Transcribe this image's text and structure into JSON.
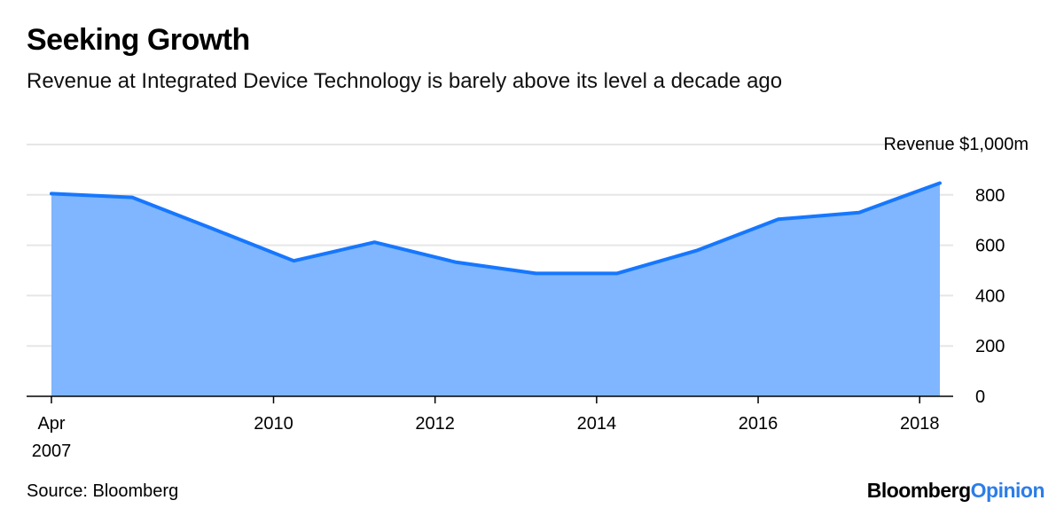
{
  "title": "Seeking Growth",
  "subtitle": "Revenue at Integrated Device Technology is barely above its level a decade ago",
  "source": "Source: Bloomberg",
  "brand": {
    "main": "Bloomberg",
    "accent": "Opinion"
  },
  "colors": {
    "line": "#1677ff",
    "area": "#7fb6ff",
    "grid": "#e6e6e6",
    "brand_accent": "#2b7de9"
  },
  "chart_data": {
    "type": "area",
    "ylabel": "Revenue $1,000m",
    "ylim": [
      0,
      1000
    ],
    "y_ticks": [
      0,
      200,
      400,
      600,
      800
    ],
    "x_ticks": [
      {
        "x": 2007.25,
        "label": "Apr",
        "label2": "2007"
      },
      {
        "x": 2010,
        "label": "2010"
      },
      {
        "x": 2012,
        "label": "2012"
      },
      {
        "x": 2014,
        "label": "2014"
      },
      {
        "x": 2016,
        "label": "2016"
      },
      {
        "x": 2018,
        "label": "2018"
      }
    ],
    "xlim": [
      2007.25,
      2018.25
    ],
    "grid": true,
    "y_axis_position": "right",
    "series": [
      {
        "x": [
          2007.25,
          2008.25,
          2009.25,
          2010.25,
          2011.25,
          2012.25,
          2013.25,
          2014.25,
          2015.25,
          2016.25,
          2017.25,
          2018.25
        ],
        "values": [
          805,
          790,
          665,
          538,
          612,
          533,
          488,
          488,
          580,
          703,
          730,
          847
        ]
      }
    ]
  }
}
